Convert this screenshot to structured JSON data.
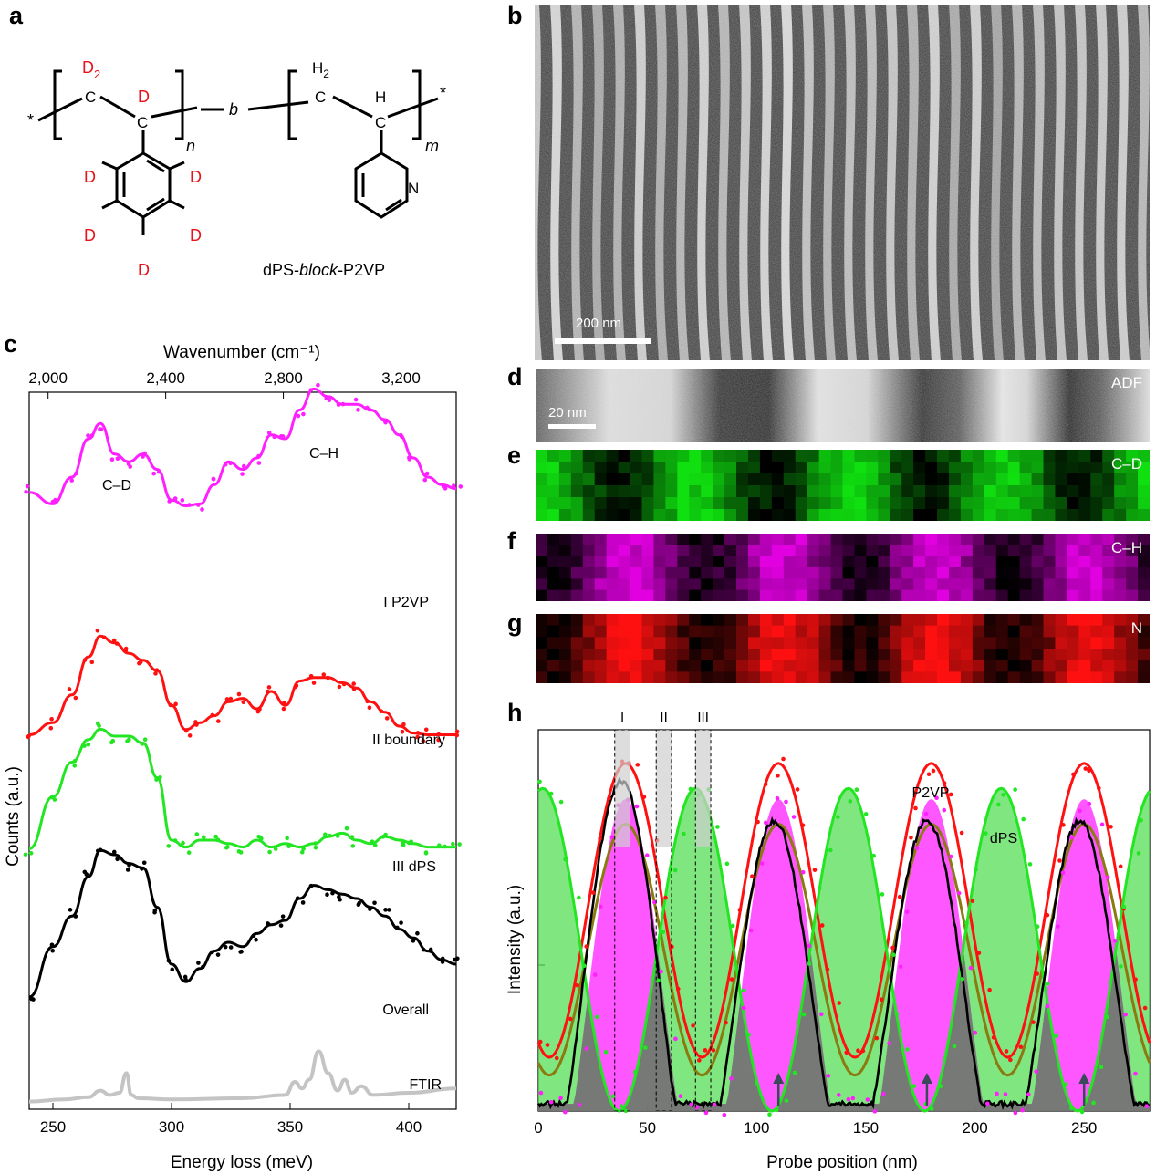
{
  "panel_labels": {
    "a": "a",
    "b": "b",
    "c": "c",
    "d": "d",
    "e": "e",
    "f": "f",
    "g": "g",
    "h": "h"
  },
  "structure": {
    "name_prefix": "dPS-",
    "name_italic": "block",
    "name_suffix": "-P2VP",
    "deuterium_label": "D",
    "d2_label": "D",
    "d2_sub": "2",
    "h2_label": "H",
    "h2_sub": "2",
    "h_label": "H",
    "carbon_label": "C",
    "nitrogen_label": "N",
    "star": "*",
    "b_label": "b",
    "n_label": "n",
    "m_label": "m"
  },
  "panel_b": {
    "scale_bar": "200 nm"
  },
  "panel_d": {
    "label": "ADF",
    "scale_bar": "20 nm"
  },
  "panel_e": {
    "label": "C–D"
  },
  "panel_f": {
    "label": "C–H"
  },
  "panel_g": {
    "label": "N"
  },
  "colors": {
    "p2vp": "#ff1fff",
    "boundary": "#ff1111",
    "dps": "#22e622",
    "overall": "#000000",
    "ftir": "#c4c4c4",
    "ch_map": "#e000e0",
    "cd_map": "#10e010",
    "n_map": "#ff1010",
    "olive": "#8a7a10"
  },
  "chart_data": [
    {
      "type": "line",
      "panel": "c",
      "xlabel": "Energy loss (meV)",
      "x2label": "Wavenumber (cm⁻¹)",
      "ylabel": "Counts (a.u.)",
      "xlim": [
        240,
        420
      ],
      "xticks": [
        250,
        300,
        350,
        400
      ],
      "x2ticks": [
        "2,000",
        "2,400",
        "2,800",
        "3,200"
      ],
      "annotations": [
        "C–D",
        "C–H"
      ],
      "series": [
        {
          "name": "I P2VP",
          "x": [
            240,
            250,
            258,
            265,
            270,
            276,
            282,
            288,
            294,
            300,
            306,
            312,
            318,
            324,
            330,
            336,
            342,
            348,
            354,
            360,
            366,
            372,
            378,
            384,
            390,
            396,
            402,
            408,
            414,
            420
          ],
          "values": [
            0.62,
            0.56,
            0.7,
            0.9,
            0.98,
            0.82,
            0.78,
            0.82,
            0.74,
            0.58,
            0.55,
            0.56,
            0.66,
            0.78,
            0.74,
            0.8,
            0.92,
            0.9,
            1.05,
            1.16,
            1.12,
            1.08,
            1.08,
            1.05,
            1.0,
            0.92,
            0.8,
            0.7,
            0.66,
            0.64
          ]
        },
        {
          "name": "II boundary",
          "x": [
            240,
            250,
            258,
            265,
            270,
            276,
            282,
            288,
            294,
            300,
            306,
            312,
            318,
            324,
            330,
            336,
            342,
            348,
            354,
            360,
            366,
            372,
            378,
            384,
            390,
            396,
            402,
            408,
            414,
            420
          ],
          "values": [
            0.05,
            0.12,
            0.28,
            0.5,
            0.62,
            0.58,
            0.52,
            0.48,
            0.42,
            0.22,
            0.08,
            0.12,
            0.16,
            0.24,
            0.26,
            0.2,
            0.3,
            0.22,
            0.36,
            0.38,
            0.38,
            0.35,
            0.32,
            0.24,
            0.18,
            0.1,
            0.06,
            0.05,
            0.05,
            0.05
          ]
        },
        {
          "name": "III dPS",
          "x": [
            240,
            250,
            258,
            265,
            270,
            276,
            282,
            288,
            294,
            300,
            306,
            312,
            318,
            324,
            330,
            336,
            342,
            348,
            354,
            360,
            366,
            372,
            378,
            384,
            390,
            396,
            402,
            408,
            414,
            420
          ],
          "values": [
            0.05,
            0.35,
            0.55,
            0.68,
            0.74,
            0.7,
            0.7,
            0.66,
            0.46,
            0.1,
            0.06,
            0.1,
            0.1,
            0.08,
            0.06,
            0.1,
            0.06,
            0.08,
            0.06,
            0.08,
            0.12,
            0.14,
            0.1,
            0.08,
            0.12,
            0.1,
            0.08,
            0.06,
            0.06,
            0.06
          ]
        },
        {
          "name": "Overall",
          "x": [
            240,
            250,
            258,
            265,
            270,
            276,
            282,
            288,
            294,
            300,
            306,
            312,
            318,
            324,
            330,
            336,
            342,
            348,
            354,
            360,
            366,
            372,
            378,
            384,
            390,
            396,
            402,
            408,
            414,
            420
          ],
          "values": [
            0.05,
            0.28,
            0.42,
            0.6,
            0.72,
            0.7,
            0.66,
            0.64,
            0.46,
            0.2,
            0.12,
            0.18,
            0.26,
            0.3,
            0.28,
            0.34,
            0.38,
            0.4,
            0.5,
            0.56,
            0.54,
            0.52,
            0.5,
            0.46,
            0.42,
            0.36,
            0.32,
            0.26,
            0.22,
            0.2
          ]
        },
        {
          "name": "FTIR",
          "x": [
            240,
            255,
            265,
            270,
            274,
            278,
            281,
            283,
            286,
            300,
            330,
            348,
            352,
            355,
            358,
            362,
            366,
            370,
            373,
            376,
            380,
            385,
            400,
            420
          ],
          "values": [
            0.02,
            0.04,
            0.06,
            0.12,
            0.08,
            0.1,
            0.28,
            0.08,
            0.05,
            0.04,
            0.05,
            0.08,
            0.2,
            0.14,
            0.22,
            0.48,
            0.28,
            0.12,
            0.22,
            0.1,
            0.16,
            0.08,
            0.1,
            0.14
          ]
        }
      ]
    },
    {
      "type": "line",
      "panel": "h",
      "xlabel": "Probe position (nm)",
      "ylabel": "Intensity (a.u.)",
      "xlim": [
        0,
        280
      ],
      "xticks": [
        0,
        50,
        100,
        150,
        200,
        250
      ],
      "annotations": [
        "P2VP",
        "dPS"
      ],
      "regions": [
        {
          "label": "I",
          "x": [
            35,
            42
          ]
        },
        {
          "label": "II",
          "x": [
            54,
            61
          ]
        },
        {
          "label": "III",
          "x": [
            72,
            79
          ]
        }
      ],
      "arrows_x": [
        110,
        178,
        250
      ],
      "series": [
        {
          "name": "P2VP",
          "period": 70,
          "peak_x": [
            40,
            110,
            180,
            250
          ],
          "min": 0.15,
          "max": 0.97
        },
        {
          "name": "dPS",
          "period": 70,
          "peak_x": [
            2,
            72,
            143,
            215
          ],
          "min": 0.0,
          "max": 0.9
        }
      ]
    }
  ]
}
